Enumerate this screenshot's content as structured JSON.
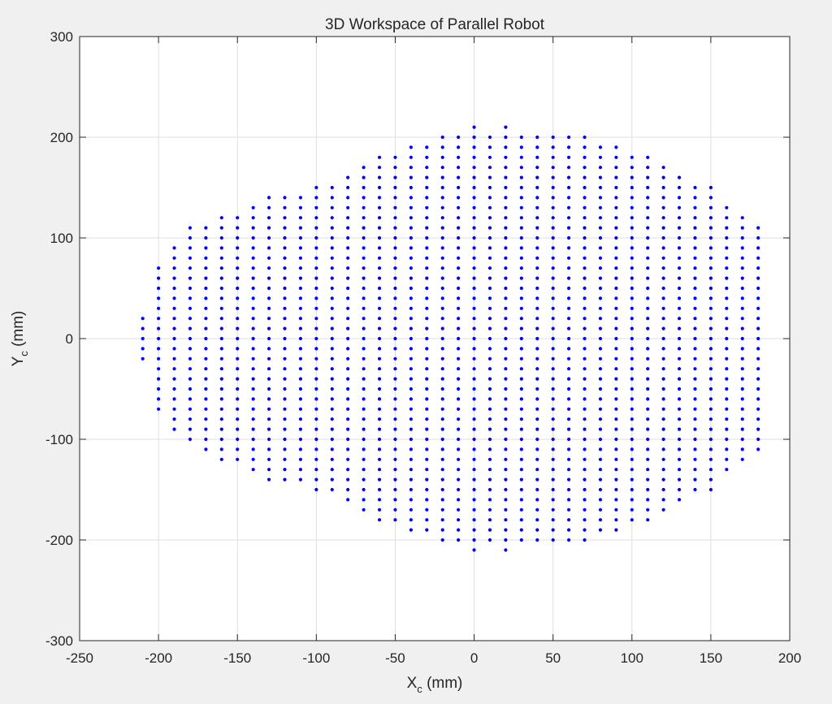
{
  "chart_data": {
    "type": "scatter",
    "title": "3D Workspace of Parallel Robot",
    "xlabel": {
      "main": "X",
      "sub": "c",
      "unit": " (mm)"
    },
    "ylabel": {
      "main": "Y",
      "sub": "c",
      "unit": " (mm)"
    },
    "xlim": [
      -250,
      200
    ],
    "ylim": [
      -300,
      300
    ],
    "xticks": [
      -250,
      -200,
      -150,
      -100,
      -50,
      0,
      50,
      100,
      150,
      200
    ],
    "yticks": [
      -300,
      -200,
      -100,
      0,
      100,
      200,
      300
    ],
    "xtick_labels": [
      "-250",
      "-200",
      "-150",
      "-100",
      "-50",
      "0",
      "50",
      "100",
      "150",
      "200"
    ],
    "ytick_labels": [
      "-300",
      "-200",
      "-100",
      "0",
      "100",
      "200",
      "300"
    ],
    "grid": true,
    "marker_color": "#0000ff",
    "grid_spacing": 10,
    "columns": [
      {
        "x": -210,
        "y_min": -20,
        "y_max": 20
      },
      {
        "x": -200,
        "y_min": -70,
        "y_max": 70
      },
      {
        "x": -190,
        "y_min": -90,
        "y_max": 90
      },
      {
        "x": -180,
        "y_min": -100,
        "y_max": 110
      },
      {
        "x": -170,
        "y_min": -110,
        "y_max": 110
      },
      {
        "x": -160,
        "y_min": -120,
        "y_max": 120
      },
      {
        "x": -150,
        "y_min": -120,
        "y_max": 120
      },
      {
        "x": -140,
        "y_min": -130,
        "y_max": 130
      },
      {
        "x": -130,
        "y_min": -140,
        "y_max": 140
      },
      {
        "x": -120,
        "y_min": -140,
        "y_max": 140
      },
      {
        "x": -110,
        "y_min": -140,
        "y_max": 140
      },
      {
        "x": -100,
        "y_min": -150,
        "y_max": 150
      },
      {
        "x": -90,
        "y_min": -150,
        "y_max": 150
      },
      {
        "x": -80,
        "y_min": -160,
        "y_max": 160
      },
      {
        "x": -70,
        "y_min": -170,
        "y_max": 170
      },
      {
        "x": -60,
        "y_min": -180,
        "y_max": 180
      },
      {
        "x": -50,
        "y_min": -180,
        "y_max": 180
      },
      {
        "x": -40,
        "y_min": -190,
        "y_max": 190
      },
      {
        "x": -30,
        "y_min": -190,
        "y_max": 190
      },
      {
        "x": -20,
        "y_min": -200,
        "y_max": 200
      },
      {
        "x": -10,
        "y_min": -200,
        "y_max": 200
      },
      {
        "x": 0,
        "y_min": -210,
        "y_max": 210
      },
      {
        "x": 10,
        "y_min": -200,
        "y_max": 200
      },
      {
        "x": 20,
        "y_min": -210,
        "y_max": 210
      },
      {
        "x": 30,
        "y_min": -200,
        "y_max": 200
      },
      {
        "x": 40,
        "y_min": -200,
        "y_max": 200
      },
      {
        "x": 50,
        "y_min": -200,
        "y_max": 200
      },
      {
        "x": 60,
        "y_min": -200,
        "y_max": 200
      },
      {
        "x": 70,
        "y_min": -200,
        "y_max": 200
      },
      {
        "x": 80,
        "y_min": -190,
        "y_max": 190
      },
      {
        "x": 90,
        "y_min": -190,
        "y_max": 190
      },
      {
        "x": 100,
        "y_min": -180,
        "y_max": 180
      },
      {
        "x": 110,
        "y_min": -180,
        "y_max": 180
      },
      {
        "x": 120,
        "y_min": -170,
        "y_max": 170
      },
      {
        "x": 130,
        "y_min": -160,
        "y_max": 160
      },
      {
        "x": 140,
        "y_min": -150,
        "y_max": 150
      },
      {
        "x": 150,
        "y_min": -150,
        "y_max": 150
      },
      {
        "x": 160,
        "y_min": -130,
        "y_max": 130
      },
      {
        "x": 170,
        "y_min": -120,
        "y_max": 120
      },
      {
        "x": 180,
        "y_min": -110,
        "y_max": 110
      }
    ]
  }
}
